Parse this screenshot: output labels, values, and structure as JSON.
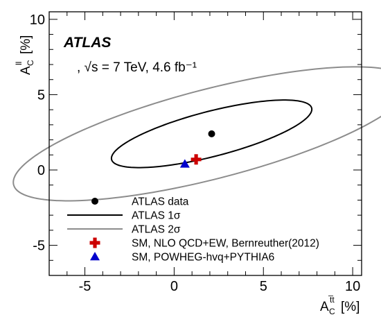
{
  "chart_data": {
    "type": "scatter",
    "experiment": "ATLAS",
    "energy_label": ", √s = 7 TeV,  4.6 fb⁻¹",
    "xlabel": {
      "base": "A",
      "sub": "C",
      "sup": "t̅t",
      "unit": "[%]"
    },
    "ylabel": {
      "base": "A",
      "sub": "C",
      "sup": "ll",
      "unit": "[%]"
    },
    "xlim": [
      -7,
      10.5
    ],
    "ylim": [
      -7,
      10.5
    ],
    "xticks": [
      "-5",
      "0",
      "5",
      "10"
    ],
    "yticks": [
      "-5",
      "0",
      "5",
      "10"
    ],
    "xtick_values": [
      -5,
      0,
      5,
      10
    ],
    "ytick_values": [
      -5,
      0,
      5,
      10
    ],
    "minor_step": 1,
    "points": [
      {
        "name": "ATLAS data",
        "x": 2.1,
        "y": 2.4,
        "marker": "circle",
        "color": "#000000"
      },
      {
        "name": "SM, NLO QCD+EW, Bernreuther(2012)",
        "x": 1.23,
        "y": 0.7,
        "marker": "cross",
        "color": "#cc0000"
      },
      {
        "name": "SM, POWHEG-hvq+PYTHIA6",
        "x": 0.6,
        "y": 0.4,
        "marker": "triangle",
        "color": "#0000cc"
      }
    ],
    "contours": [
      {
        "name": "ATLAS 1σ",
        "center": [
          2.1,
          2.4
        ],
        "semi_major": 5.86,
        "semi_minor": 1.48,
        "angle_deg": 17.3,
        "color": "#000000"
      },
      {
        "name": "ATLAS 2σ",
        "center": [
          2.1,
          2.4
        ],
        "semi_major": 11.6,
        "semi_minor": 2.94,
        "angle_deg": 17.3,
        "color": "#8c8c8c"
      }
    ],
    "legend": [
      {
        "label": "ATLAS data",
        "kind": "circle",
        "color": "#000000"
      },
      {
        "label": "ATLAS 1σ",
        "kind": "line",
        "color": "#000000"
      },
      {
        "label": "ATLAS 2σ",
        "kind": "line",
        "color": "#8c8c8c"
      },
      {
        "label": "SM, NLO QCD+EW, Bernreuther(2012)",
        "kind": "cross",
        "color": "#cc0000"
      },
      {
        "label": "SM, POWHEG-hvq+PYTHIA6",
        "kind": "triangle",
        "color": "#0000cc"
      }
    ],
    "legend_position": "bottom-center"
  }
}
